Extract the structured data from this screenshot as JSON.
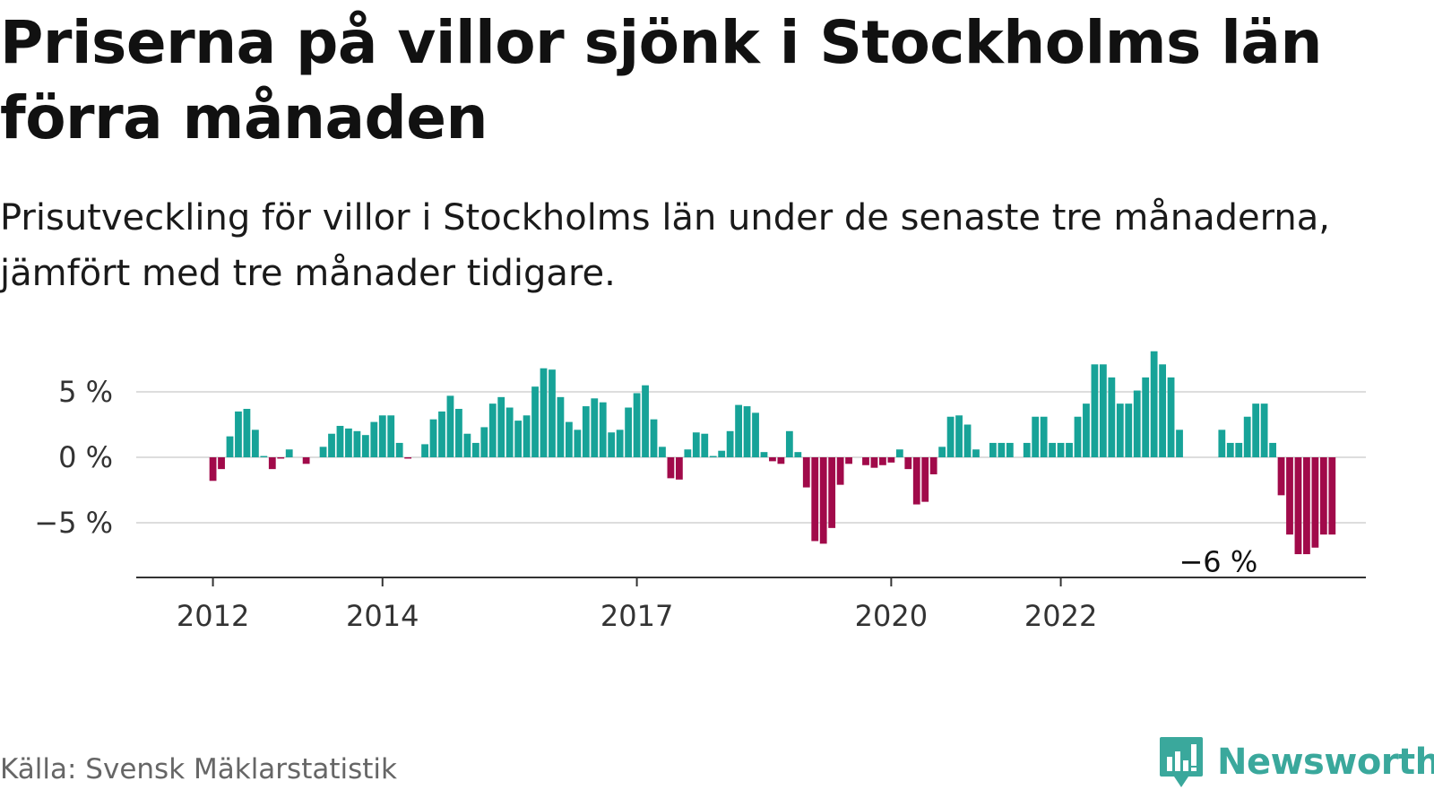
{
  "header": {
    "title": "Priserna på villor sjönk i Stockholms län förra månaden",
    "subtitle": "Prisutveckling för villor i Stockholms län under de senaste tre månaderna, jämfört med tre månader tidigare."
  },
  "footer": {
    "source": "Källa: Svensk Mäklarstatistik",
    "brand": "Newsworthy"
  },
  "colors": {
    "positive": "#17a398",
    "negative": "#a10a4a",
    "grid": "#dddddd",
    "axis": "#333333",
    "brand": "#3aa89c"
  },
  "icons": {
    "brand_logo": "newsworthy-bar-chart-icon"
  },
  "chart_data": {
    "type": "bar",
    "title": "",
    "xlabel": "",
    "ylabel": "",
    "ylim": [
      -9,
      9
    ],
    "y_ticks": [
      {
        "value": 5,
        "label": "5 %"
      },
      {
        "value": 0,
        "label": "0 %"
      },
      {
        "value": -5,
        "label": "−5 %"
      }
    ],
    "x_ticks": [
      {
        "label": "2012",
        "index": 8
      },
      {
        "label": "2014",
        "index": 28
      },
      {
        "label": "2017",
        "index": 58
      },
      {
        "label": "2020",
        "index": 88
      },
      {
        "label": "2022",
        "index": 108
      }
    ],
    "annotation": {
      "label": "−6 %",
      "index": 127,
      "value": -6
    },
    "values": [
      null,
      null,
      null,
      null,
      null,
      null,
      null,
      null,
      -1.8,
      -0.9,
      1.6,
      3.5,
      3.7,
      2.1,
      0.1,
      -0.9,
      -0.1,
      0.6,
      null,
      -0.5,
      null,
      0.8,
      1.8,
      2.4,
      2.2,
      2.0,
      1.7,
      2.7,
      3.2,
      3.2,
      1.1,
      -0.1,
      null,
      1.0,
      2.9,
      3.5,
      4.7,
      3.7,
      1.8,
      1.1,
      2.3,
      4.1,
      4.6,
      3.8,
      2.8,
      3.2,
      5.4,
      6.8,
      6.7,
      4.6,
      2.7,
      2.1,
      3.9,
      4.5,
      4.2,
      1.9,
      2.1,
      3.8,
      4.9,
      5.5,
      2.9,
      0.8,
      -1.6,
      -1.7,
      0.6,
      1.9,
      1.8,
      0.1,
      0.5,
      2.0,
      4.0,
      3.9,
      3.4,
      0.4,
      -0.3,
      -0.5,
      2.0,
      0.4,
      -2.3,
      -6.4,
      -6.6,
      -5.4,
      -2.1,
      -0.5,
      null,
      -0.6,
      -0.8,
      -0.6,
      -0.4,
      0.6,
      -0.9,
      -3.6,
      -3.4,
      -1.3,
      0.8,
      3.1,
      3.2,
      2.5,
      0.6,
      null,
      1.1,
      1.1,
      1.1,
      null,
      1.1,
      3.1,
      3.1,
      1.1,
      1.1,
      1.1,
      3.1,
      4.1,
      7.1,
      7.1,
      6.1,
      4.1,
      4.1,
      5.1,
      6.1,
      8.1,
      7.1,
      6.1,
      2.1,
      null,
      null,
      null,
      null,
      2.1,
      1.1,
      1.1,
      3.1,
      4.1,
      4.1,
      1.1,
      -2.9,
      -5.9,
      -7.4,
      -7.4,
      -6.9,
      -5.9,
      -5.9
    ]
  }
}
